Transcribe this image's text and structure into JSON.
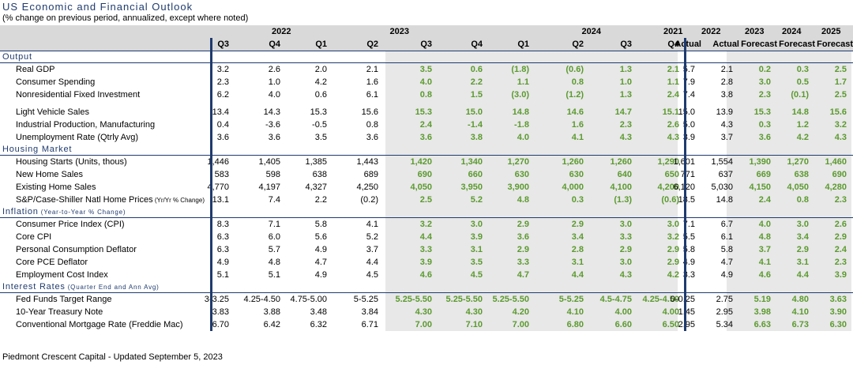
{
  "title": "US Economic and Financial Outlook",
  "subtitle": "(% change on previous  period, annualized, except where noted)",
  "footer": "Piedmont Crescent Capital - Updated September 5, 2023",
  "colors": {
    "accent": "#1f3b6e",
    "forecast": "#5b9a2e",
    "header_bg": "#d9d9d9",
    "forecast_bg": "#e8e8e8"
  },
  "header": {
    "years": [
      "2022",
      "2023",
      "2024",
      "2021",
      "2022",
      "2023",
      "2024",
      "2025"
    ],
    "sub": [
      "Q3",
      "Q4",
      "Q1",
      "Q2",
      "Q3",
      "Q4",
      "Q1",
      "Q2",
      "Q3",
      "Q4",
      "Actual",
      "Actual",
      "Forecast",
      "Forecast",
      "Forecast"
    ]
  },
  "sections": [
    {
      "title": "Output",
      "groups": [
        [
          {
            "label": "Real GDP",
            "values": [
              "3.2",
              "2.6",
              "2.0",
              "2.1",
              "3.5",
              "0.6",
              "(1.8)",
              "(0.6)",
              "1.3",
              "2.1",
              "5.7",
              "2.1",
              "0.2",
              "0.3",
              "2.5"
            ]
          },
          {
            "label": "Consumer Spending",
            "values": [
              "2.3",
              "1.0",
              "4.2",
              "1.6",
              "4.0",
              "2.2",
              "1.1",
              "0.8",
              "1.0",
              "1.1",
              "7.9",
              "2.8",
              "3.0",
              "0.5",
              "1.7"
            ]
          },
          {
            "label": "Nonresidential Fixed Investment",
            "values": [
              "6.2",
              "4.0",
              "0.6",
              "6.1",
              "0.8",
              "1.5",
              "(3.0)",
              "(1.2)",
              "1.3",
              "2.4",
              "7.4",
              "3.8",
              "2.3",
              "(0.1)",
              "2.5"
            ]
          }
        ],
        [
          {
            "label": "Light Vehicle Sales",
            "values": [
              "13.4",
              "14.3",
              "15.3",
              "15.6",
              "15.3",
              "15.0",
              "14.8",
              "14.6",
              "14.7",
              "15.1",
              "15.0",
              "13.9",
              "15.3",
              "14.8",
              "15.6"
            ]
          },
          {
            "label": "Industrial Production, Manufacturing",
            "values": [
              "0.4",
              "-3.6",
              "-0.5",
              "0.8",
              "2.4",
              "-1.4",
              "-1.8",
              "1.6",
              "2.3",
              "2.6",
              "5.0",
              "4.3",
              "0.3",
              "1.2",
              "3.2"
            ]
          },
          {
            "label": "Unemployment Rate (Qtrly Avg)",
            "values": [
              "3.6",
              "3.6",
              "3.5",
              "3.6",
              "3.6",
              "3.8",
              "4.0",
              "4.1",
              "4.3",
              "4.3",
              "3.9",
              "3.7",
              "3.6",
              "4.2",
              "4.3"
            ]
          }
        ]
      ]
    },
    {
      "title": "Housing Market",
      "groups": [
        [
          {
            "label": "Housing Starts (Units, thous)",
            "values": [
              "1,446",
              "1,405",
              "1,385",
              "1,443",
              "1,420",
              "1,340",
              "1,270",
              "1,260",
              "1,260",
              "1,290",
              "1,601",
              "1,554",
              "1,390",
              "1,270",
              "1,460"
            ]
          },
          {
            "label": "New Home Sales",
            "values": [
              "583",
              "598",
              "638",
              "689",
              "690",
              "660",
              "630",
              "630",
              "640",
              "650",
              "771",
              "637",
              "669",
              "638",
              "690"
            ]
          },
          {
            "label": "Existing Home Sales",
            "values": [
              "4,770",
              "4,197",
              "4,327",
              "4,250",
              "4,050",
              "3,950",
              "3,900",
              "4,000",
              "4,100",
              "4,200",
              "6,120",
              "5,030",
              "4,150",
              "4,050",
              "4,280"
            ]
          },
          {
            "label": "S&P/Case-Shiller Natl Home Prices",
            "note": "(Yr/Yr % Change)",
            "values": [
              "13.1",
              "7.4",
              "2.2",
              "(0.2)",
              "2.5",
              "5.2",
              "4.8",
              "0.3",
              "(1.3)",
              "(0.6)",
              "18.5",
              "14.8",
              "2.4",
              "0.8",
              "2.3"
            ]
          }
        ]
      ]
    },
    {
      "title": "Inflation",
      "note": "(Year-to-Year % Change)",
      "groups": [
        [
          {
            "label": "Consumer Price Index (CPI)",
            "values": [
              "8.3",
              "7.1",
              "5.8",
              "4.1",
              "3.2",
              "3.0",
              "2.9",
              "2.9",
              "3.0",
              "3.0",
              "7.1",
              "6.7",
              "4.0",
              "3.0",
              "2.6"
            ]
          },
          {
            "label": "Core CPI",
            "values": [
              "6.3",
              "6.0",
              "5.6",
              "5.2",
              "4.4",
              "3.9",
              "3.6",
              "3.4",
              "3.3",
              "3.2",
              "5.5",
              "6.1",
              "4.8",
              "3.4",
              "2.9"
            ]
          },
          {
            "label": "Personal Consumption Deflator",
            "values": [
              "6.3",
              "5.7",
              "4.9",
              "3.7",
              "3.3",
              "3.1",
              "2.9",
              "2.8",
              "2.9",
              "2.9",
              "5.8",
              "5.8",
              "3.7",
              "2.9",
              "2.4"
            ]
          },
          {
            "label": "Core PCE Deflator",
            "values": [
              "4.9",
              "4.8",
              "4.7",
              "4.4",
              "3.9",
              "3.5",
              "3.3",
              "3.1",
              "3.0",
              "2.9",
              "4.9",
              "4.7",
              "4.1",
              "3.1",
              "2.3"
            ]
          },
          {
            "label": "Employment Cost Index",
            "values": [
              "5.1",
              "5.1",
              "4.9",
              "4.5",
              "4.6",
              "4.5",
              "4.7",
              "4.4",
              "4.3",
              "4.2",
              "3.3",
              "4.9",
              "4.6",
              "4.4",
              "3.9"
            ]
          }
        ]
      ]
    },
    {
      "title": "Interest Rates",
      "note": "(Quarter End and Ann Avg)",
      "groups": [
        [
          {
            "label": "Fed Funds Target Range",
            "values": [
              "3-3.25",
              "4.25-4.50",
              "4.75-5.00",
              "5-5.25",
              "5.25-5.50",
              "5.25-5.50",
              "5.25-5.50",
              "5-5.25",
              "4.5-4.75",
              "4.25-4.50",
              "0-0.25",
              "2.75",
              "5.19",
              "4.80",
              "3.63"
            ]
          },
          {
            "label": "10-Year Treasury Note",
            "values": [
              "3.83",
              "3.88",
              "3.48",
              "3.84",
              "4.30",
              "4.30",
              "4.20",
              "4.10",
              "4.00",
              "4.00",
              "1.45",
              "2.95",
              "3.98",
              "4.10",
              "3.90"
            ]
          },
          {
            "label": "Conventional Mortgage Rate (Freddie Mac)",
            "values": [
              "6.70",
              "6.42",
              "6.32",
              "6.71",
              "7.00",
              "7.10",
              "7.00",
              "6.80",
              "6.60",
              "6.50",
              "2.95",
              "5.34",
              "6.63",
              "6.73",
              "6.30"
            ]
          }
        ]
      ]
    }
  ]
}
